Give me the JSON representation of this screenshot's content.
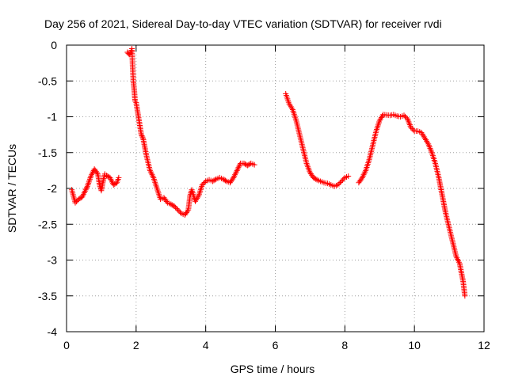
{
  "chart_data": {
    "type": "scatter",
    "title": "Day 256 of 2021, Sidereal Day-to-day VTEC variation (SDTVAR) for receiver rvdi",
    "xlabel": "GPS time / hours",
    "ylabel": "SDTVAR / TECUs",
    "xlim": [
      0,
      12
    ],
    "ylim": [
      -4,
      0
    ],
    "xticks": [
      0,
      2,
      4,
      6,
      8,
      10,
      12
    ],
    "xtick_labels": [
      "0",
      "2",
      "4",
      "6",
      "8",
      "10",
      "12"
    ],
    "yticks": [
      0,
      -0.5,
      -1,
      -1.5,
      -2,
      -2.5,
      -3,
      -3.5,
      -4
    ],
    "ytick_labels": [
      "0",
      "-0.5",
      "-1",
      "-1.5",
      "-2",
      "-2.5",
      "-3",
      "-3.5",
      "-4"
    ],
    "grid": true,
    "marker": "plus",
    "color": "#ff0000",
    "series": [
      {
        "name": "segment-1",
        "x": [
          0.15,
          0.25,
          0.35,
          0.45,
          0.55,
          0.6,
          0.7,
          0.8,
          0.9,
          0.95,
          1.0,
          1.05,
          1.1,
          1.15,
          1.25,
          1.35,
          1.45,
          1.5
        ],
        "y": [
          -2.02,
          -2.2,
          -2.15,
          -2.12,
          -2.02,
          -1.97,
          -1.83,
          -1.73,
          -1.8,
          -1.95,
          -2.03,
          -1.9,
          -1.8,
          -1.82,
          -1.85,
          -1.95,
          -1.92,
          -1.85
        ]
      },
      {
        "name": "segment-2",
        "x": [
          1.75,
          1.8,
          1.85,
          1.88,
          1.9,
          1.92,
          1.95,
          1.97,
          2.0,
          2.05,
          2.1,
          2.15,
          2.2,
          2.3,
          2.4,
          2.5,
          2.6,
          2.7,
          2.8,
          2.9,
          3.0,
          3.1,
          3.2,
          3.3,
          3.4,
          3.5,
          3.55,
          3.6,
          3.65,
          3.7,
          3.8,
          3.9,
          4.0,
          4.1,
          4.2,
          4.3,
          4.4,
          4.5,
          4.6,
          4.7,
          4.8,
          4.9,
          5.0,
          5.1,
          5.2,
          5.3,
          5.4
        ],
        "y": [
          -0.1,
          -0.13,
          -0.1,
          -0.05,
          -0.3,
          -0.5,
          -0.65,
          -0.78,
          -0.8,
          -0.95,
          -1.1,
          -1.25,
          -1.3,
          -1.55,
          -1.75,
          -1.85,
          -2.0,
          -2.15,
          -2.13,
          -2.2,
          -2.22,
          -2.25,
          -2.3,
          -2.35,
          -2.37,
          -2.3,
          -2.1,
          -2.02,
          -2.1,
          -2.18,
          -2.1,
          -1.95,
          -1.9,
          -1.88,
          -1.9,
          -1.87,
          -1.85,
          -1.87,
          -1.9,
          -1.92,
          -1.85,
          -1.75,
          -1.65,
          -1.65,
          -1.68,
          -1.65,
          -1.67
        ]
      },
      {
        "name": "segment-3",
        "x": [
          6.3,
          6.35,
          6.4,
          6.5,
          6.6,
          6.7,
          6.8,
          6.9,
          7.0,
          7.1,
          7.2,
          7.3,
          7.4,
          7.5,
          7.6,
          7.7,
          7.8,
          7.9,
          8.0,
          8.1
        ],
        "y": [
          -0.68,
          -0.75,
          -0.82,
          -0.9,
          -1.05,
          -1.25,
          -1.45,
          -1.65,
          -1.78,
          -1.85,
          -1.88,
          -1.9,
          -1.92,
          -1.93,
          -1.95,
          -1.97,
          -1.95,
          -1.9,
          -1.85,
          -1.83
        ]
      },
      {
        "name": "segment-4",
        "x": [
          8.4,
          8.5,
          8.6,
          8.7,
          8.8,
          8.9,
          9.0,
          9.1,
          9.3,
          9.4,
          9.5,
          9.6,
          9.7,
          9.8,
          9.9,
          10.0,
          10.1,
          10.2,
          10.3,
          10.4,
          10.5,
          10.6,
          10.7,
          10.8,
          10.9,
          11.0,
          11.1,
          11.2,
          11.3,
          11.4,
          11.45
        ],
        "y": [
          -1.92,
          -1.85,
          -1.75,
          -1.6,
          -1.4,
          -1.2,
          -1.05,
          -0.97,
          -0.98,
          -0.97,
          -0.99,
          -1.0,
          -0.98,
          -1.03,
          -1.15,
          -1.2,
          -1.2,
          -1.22,
          -1.3,
          -1.38,
          -1.5,
          -1.65,
          -1.85,
          -2.1,
          -2.35,
          -2.55,
          -2.75,
          -2.95,
          -3.05,
          -3.3,
          -3.5
        ]
      }
    ]
  }
}
